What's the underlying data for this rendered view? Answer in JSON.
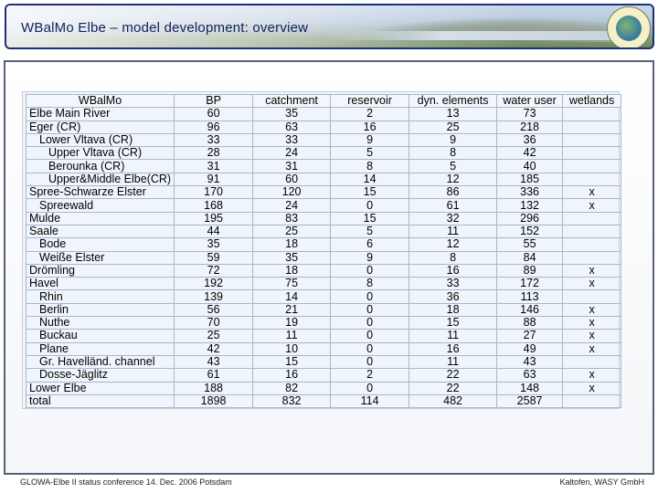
{
  "header": {
    "title": "WBalMo Elbe – model development: overview"
  },
  "table": {
    "columns": [
      "WBalMo",
      "BP",
      "catchment",
      "reservoir",
      "dyn. elements",
      "water user",
      "wetlands"
    ],
    "rows": [
      {
        "name": "Elbe Main River",
        "indent": 0,
        "bp": "60",
        "catchment": "35",
        "reservoir": "2",
        "dyn": "13",
        "user": "73",
        "wetlands": ""
      },
      {
        "name": "Eger (CR)",
        "indent": 0,
        "bp": "96",
        "catchment": "63",
        "reservoir": "16",
        "dyn": "25",
        "user": "218",
        "wetlands": ""
      },
      {
        "name": "Lower Vltava (CR)",
        "indent": 1,
        "bp": "33",
        "catchment": "33",
        "reservoir": "9",
        "dyn": "9",
        "user": "36",
        "wetlands": ""
      },
      {
        "name": "Upper Vltava (CR)",
        "indent": 2,
        "bp": "28",
        "catchment": "24",
        "reservoir": "5",
        "dyn": "8",
        "user": "42",
        "wetlands": ""
      },
      {
        "name": "Berounka (CR)",
        "indent": 2,
        "bp": "31",
        "catchment": "31",
        "reservoir": "8",
        "dyn": "5",
        "user": "40",
        "wetlands": ""
      },
      {
        "name": "Upper&Middle Elbe(CR)",
        "indent": 2,
        "bp": "91",
        "catchment": "60",
        "reservoir": "14",
        "dyn": "12",
        "user": "185",
        "wetlands": ""
      },
      {
        "name": "Spree-Schwarze Elster",
        "indent": 0,
        "bp": "170",
        "catchment": "120",
        "reservoir": "15",
        "dyn": "86",
        "user": "336",
        "wetlands": "x"
      },
      {
        "name": "Spreewald",
        "indent": 1,
        "bp": "168",
        "catchment": "24",
        "reservoir": "0",
        "dyn": "61",
        "user": "132",
        "wetlands": "x"
      },
      {
        "name": "Mulde",
        "indent": 0,
        "bp": "195",
        "catchment": "83",
        "reservoir": "15",
        "dyn": "32",
        "user": "296",
        "wetlands": ""
      },
      {
        "name": "Saale",
        "indent": 0,
        "bp": "44",
        "catchment": "25",
        "reservoir": "5",
        "dyn": "11",
        "user": "152",
        "wetlands": ""
      },
      {
        "name": "Bode",
        "indent": 1,
        "bp": "35",
        "catchment": "18",
        "reservoir": "6",
        "dyn": "12",
        "user": "55",
        "wetlands": ""
      },
      {
        "name": "Weiße Elster",
        "indent": 1,
        "bp": "59",
        "catchment": "35",
        "reservoir": "9",
        "dyn": "8",
        "user": "84",
        "wetlands": ""
      },
      {
        "name": "Drömling",
        "indent": 0,
        "bp": "72",
        "catchment": "18",
        "reservoir": "0",
        "dyn": "16",
        "user": "89",
        "wetlands": "x"
      },
      {
        "name": "Havel",
        "indent": 0,
        "bp": "192",
        "catchment": "75",
        "reservoir": "8",
        "dyn": "33",
        "user": "172",
        "wetlands": "x"
      },
      {
        "name": "Rhin",
        "indent": 1,
        "bp": "139",
        "catchment": "14",
        "reservoir": "0",
        "dyn": "36",
        "user": "113",
        "wetlands": ""
      },
      {
        "name": "Berlin",
        "indent": 1,
        "bp": "56",
        "catchment": "21",
        "reservoir": "0",
        "dyn": "18",
        "user": "146",
        "wetlands": "x"
      },
      {
        "name": "Nuthe",
        "indent": 1,
        "bp": "70",
        "catchment": "19",
        "reservoir": "0",
        "dyn": "15",
        "user": "88",
        "wetlands": "x"
      },
      {
        "name": "Buckau",
        "indent": 1,
        "bp": "25",
        "catchment": "11",
        "reservoir": "0",
        "dyn": "11",
        "user": "27",
        "wetlands": "x"
      },
      {
        "name": "Plane",
        "indent": 1,
        "bp": "42",
        "catchment": "10",
        "reservoir": "0",
        "dyn": "16",
        "user": "49",
        "wetlands": "x"
      },
      {
        "name": "Gr. Havelländ. channel",
        "indent": 1,
        "bp": "43",
        "catchment": "15",
        "reservoir": "0",
        "dyn": "11",
        "user": "43",
        "wetlands": ""
      },
      {
        "name": "Dosse-Jäglitz",
        "indent": 1,
        "bp": "61",
        "catchment": "16",
        "reservoir": "2",
        "dyn": "22",
        "user": "63",
        "wetlands": "x"
      },
      {
        "name": "Lower Elbe",
        "indent": 0,
        "bp": "188",
        "catchment": "82",
        "reservoir": "0",
        "dyn": "22",
        "user": "148",
        "wetlands": "x"
      },
      {
        "name": "total",
        "indent": 0,
        "bp": "1898",
        "catchment": "832",
        "reservoir": "114",
        "dyn": "482",
        "user": "2587",
        "wetlands": ""
      }
    ]
  },
  "footer": {
    "left": "GLOWA-Elbe II status conference 14. Dec. 2006 Potsdam",
    "right": "Kaltofen, WASY GmbH"
  }
}
